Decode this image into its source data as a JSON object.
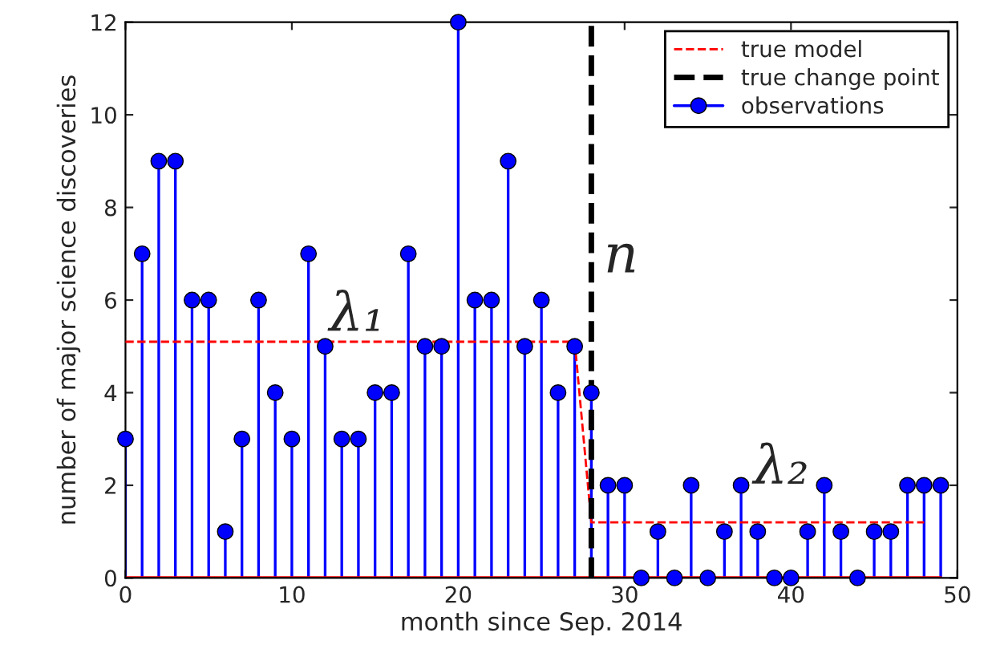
{
  "chart_data": {
    "type": "lollipop",
    "xlabel": "month since Sep. 2014",
    "ylabel": "number of major science discoveries",
    "x": [
      0,
      1,
      2,
      3,
      4,
      5,
      6,
      7,
      8,
      9,
      10,
      11,
      12,
      13,
      14,
      15,
      16,
      17,
      18,
      19,
      20,
      21,
      22,
      23,
      24,
      25,
      26,
      27,
      28,
      29,
      30,
      31,
      32,
      33,
      34,
      35,
      36,
      37,
      38,
      39,
      40,
      41,
      42,
      43,
      44,
      45,
      46,
      47,
      48,
      49
    ],
    "series": [
      {
        "name": "true model",
        "type": "line",
        "color": "#ff0000",
        "line_style": "dashed",
        "marker": "none",
        "x": [
          0,
          27,
          28,
          48
        ],
        "values": [
          5.1,
          5.1,
          1.2,
          1.2
        ]
      },
      {
        "name": "true change point",
        "type": "line",
        "color": "#000000",
        "line_style": "dashed",
        "marker": "none",
        "x": [
          28,
          28
        ],
        "values": [
          0,
          12
        ]
      },
      {
        "name": "observations",
        "color": "#0000ff",
        "marker": "circle",
        "values": [
          3,
          7,
          9,
          9,
          6,
          6,
          1,
          3,
          6,
          4,
          3,
          7,
          5,
          3,
          3,
          4,
          4,
          7,
          5,
          5,
          12,
          6,
          6,
          9,
          5,
          6,
          4,
          5,
          4,
          2,
          2,
          0,
          1,
          0,
          2,
          0,
          1,
          2,
          1,
          0,
          0,
          1,
          2,
          1,
          0,
          1,
          1,
          2,
          2,
          2
        ]
      }
    ],
    "annotations": [
      "λ₁",
      "n",
      "λ₂"
    ],
    "xlim": [
      0,
      50
    ],
    "ylim": [
      0,
      12
    ],
    "xticks": [
      0,
      10,
      20,
      30,
      40,
      50
    ],
    "yticks": [
      0,
      2,
      4,
      6,
      8,
      10,
      12
    ],
    "grid": false,
    "legend": "top right"
  }
}
